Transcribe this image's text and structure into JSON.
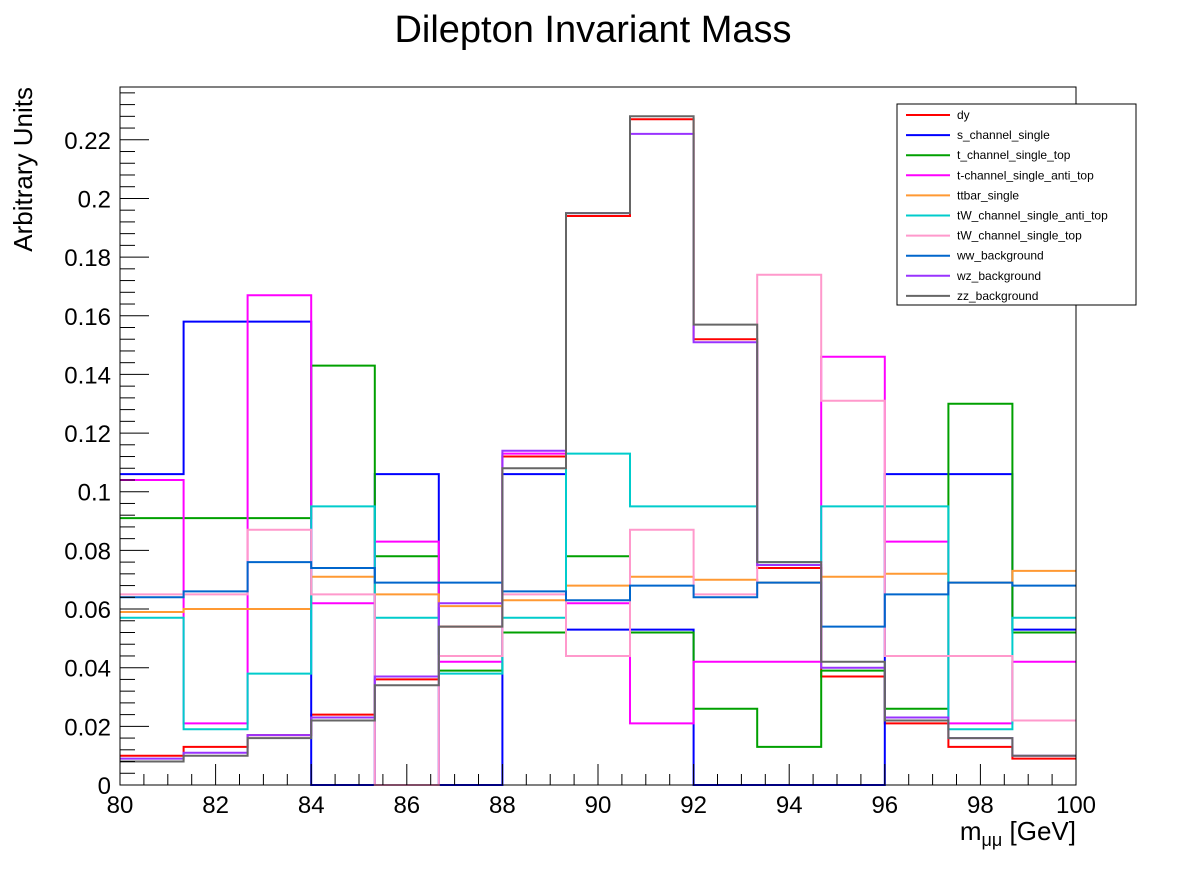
{
  "chart_data": {
    "type": "line",
    "title": "Dilepton Invariant Mass",
    "xlabel_main": "m",
    "xlabel_sub": "μμ",
    "xlabel_unit": " [GeV]",
    "ylabel": "Arbitrary Units",
    "xlim": [
      80,
      100
    ],
    "ylim": [
      0,
      0.238
    ],
    "x_ticks": [
      80,
      82,
      84,
      86,
      88,
      90,
      92,
      94,
      96,
      98,
      100
    ],
    "y_ticks": [
      0,
      0.02,
      0.04,
      0.06,
      0.08,
      0.1,
      0.12,
      0.14,
      0.16,
      0.18,
      0.2,
      0.22
    ],
    "y_tick_labels": [
      "0",
      "0.02",
      "0.04",
      "0.06",
      "0.08",
      "0.1",
      "0.12",
      "0.14",
      "0.16",
      "0.18",
      "0.2",
      "0.22"
    ],
    "bin_edges": [
      80,
      81.33,
      82.67,
      84,
      85.33,
      86.67,
      88,
      89.33,
      90.67,
      92,
      93.33,
      94.67,
      96,
      97.33,
      98.67,
      100
    ],
    "legend_position": "top-right",
    "grid": false,
    "series": [
      {
        "name": "dy",
        "color": "#ff0000",
        "values": [
          0.01,
          0.013,
          0.017,
          0.024,
          0.036,
          0.054,
          0.112,
          0.194,
          0.227,
          0.152,
          0.074,
          0.037,
          0.021,
          0.013,
          0.009
        ]
      },
      {
        "name": "s_channel_single",
        "color": "#0000ff",
        "values": [
          0.106,
          0.158,
          0.158,
          0.0,
          0.106,
          0.0,
          0.106,
          0.053,
          0.053,
          0.0,
          0.0,
          0.0,
          0.106,
          0.106,
          0.053
        ]
      },
      {
        "name": "t_channel_single_top",
        "color": "#00a000",
        "values": [
          0.091,
          0.091,
          0.091,
          0.143,
          0.078,
          0.039,
          0.052,
          0.078,
          0.052,
          0.026,
          0.013,
          0.039,
          0.026,
          0.13,
          0.052
        ]
      },
      {
        "name": "t-channel_single_anti_top",
        "color": "#ff00ff",
        "values": [
          0.104,
          0.021,
          0.167,
          0.062,
          0.083,
          0.042,
          0.113,
          0.062,
          0.021,
          0.042,
          0.042,
          0.146,
          0.083,
          0.021,
          0.042
        ]
      },
      {
        "name": "ttbar_single",
        "color": "#ff9933",
        "values": [
          0.059,
          0.06,
          0.06,
          0.071,
          0.065,
          0.061,
          0.063,
          0.068,
          0.071,
          0.07,
          0.069,
          0.071,
          0.072,
          0.069,
          0.073
        ]
      },
      {
        "name": "tW_channel_single_anti_top",
        "color": "#00cccc",
        "values": [
          0.057,
          0.019,
          0.038,
          0.095,
          0.057,
          0.038,
          0.057,
          0.113,
          0.095,
          0.095,
          0.076,
          0.095,
          0.095,
          0.019,
          0.057
        ]
      },
      {
        "name": "tW_channel_single_top",
        "color": "#ff99cc",
        "values": [
          0.065,
          0.065,
          0.087,
          0.065,
          0.0,
          0.044,
          0.065,
          0.044,
          0.087,
          0.065,
          0.174,
          0.131,
          0.044,
          0.044,
          0.022
        ]
      },
      {
        "name": "ww_background",
        "color": "#0066cc",
        "values": [
          0.064,
          0.066,
          0.076,
          0.074,
          0.069,
          0.069,
          0.066,
          0.063,
          0.068,
          0.064,
          0.069,
          0.054,
          0.065,
          0.069,
          0.068
        ]
      },
      {
        "name": "wz_background",
        "color": "#9933ff",
        "values": [
          0.009,
          0.011,
          0.017,
          0.023,
          0.037,
          0.062,
          0.114,
          0.195,
          0.222,
          0.151,
          0.075,
          0.04,
          0.023,
          0.016,
          0.01
        ]
      },
      {
        "name": "zz_background",
        "color": "#666666",
        "values": [
          0.008,
          0.01,
          0.016,
          0.022,
          0.034,
          0.054,
          0.108,
          0.195,
          0.228,
          0.157,
          0.076,
          0.042,
          0.022,
          0.016,
          0.01
        ]
      }
    ]
  }
}
